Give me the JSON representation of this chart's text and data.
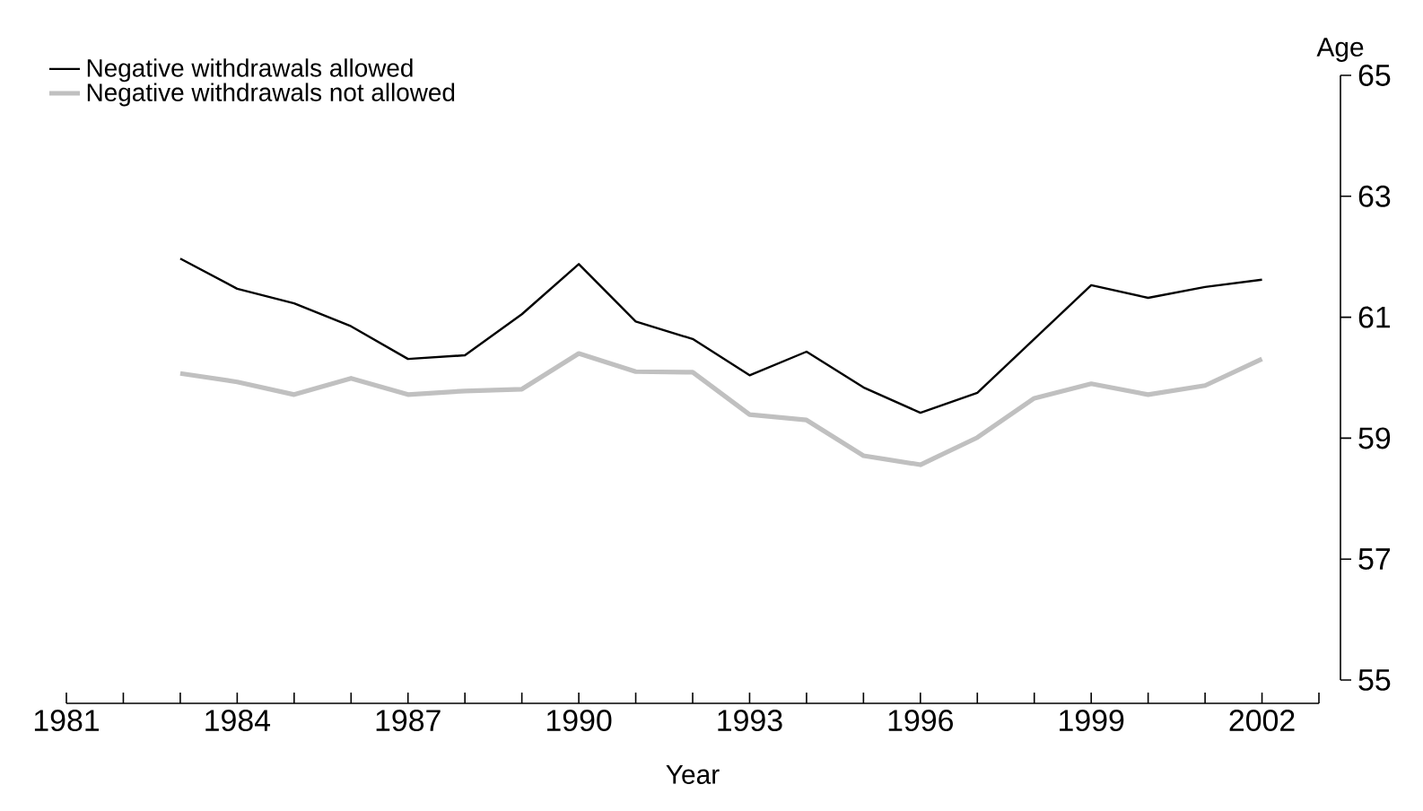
{
  "chart_data": {
    "type": "line",
    "xlabel": "Year",
    "ylabel": "Age",
    "x": [
      1983,
      1984,
      1985,
      1986,
      1987,
      1988,
      1989,
      1990,
      1991,
      1992,
      1993,
      1994,
      1995,
      1996,
      1997,
      1998,
      1999,
      2000,
      2001,
      2002
    ],
    "series": [
      {
        "name": "Negative withdrawals allowed",
        "color": "#000000",
        "values": [
          61.97,
          61.47,
          61.23,
          60.85,
          60.31,
          60.37,
          61.05,
          61.88,
          60.93,
          60.64,
          60.04,
          60.43,
          59.84,
          59.42,
          59.75,
          60.64,
          61.53,
          61.32,
          61.5,
          61.62
        ]
      },
      {
        "name": "Negative withdrawals not allowed",
        "color": "#c0c0c0",
        "values": [
          60.07,
          59.93,
          59.72,
          59.99,
          59.72,
          59.78,
          59.81,
          60.4,
          60.1,
          60.09,
          59.39,
          59.3,
          58.71,
          58.56,
          59.01,
          59.66,
          59.9,
          59.72,
          59.87,
          60.31
        ]
      }
    ],
    "xlim": [
      1981,
      2003
    ],
    "xticks": [
      1981,
      {
        "value": 1982,
        "label": null
      },
      {
        "value": 1983,
        "label": null
      },
      1984,
      {
        "value": 1985,
        "label": null
      },
      {
        "value": 1986,
        "label": null
      },
      1987,
      {
        "value": 1988,
        "label": null
      },
      {
        "value": 1989,
        "label": null
      },
      1990,
      {
        "value": 1991,
        "label": null
      },
      {
        "value": 1992,
        "label": null
      },
      1993,
      {
        "value": 1994,
        "label": null
      },
      {
        "value": 1995,
        "label": null
      },
      1996,
      {
        "value": 1997,
        "label": null
      },
      {
        "value": 1998,
        "label": null
      },
      1999,
      {
        "value": 2000,
        "label": null
      },
      {
        "value": 2001,
        "label": null
      },
      2002,
      {
        "value": 2003,
        "label": null
      }
    ],
    "ylim": [
      55,
      65
    ],
    "yticks": [
      55,
      57,
      59,
      61,
      63,
      65
    ],
    "grid": false,
    "legend": "top left",
    "marker": "none",
    "line_style": "solid"
  }
}
